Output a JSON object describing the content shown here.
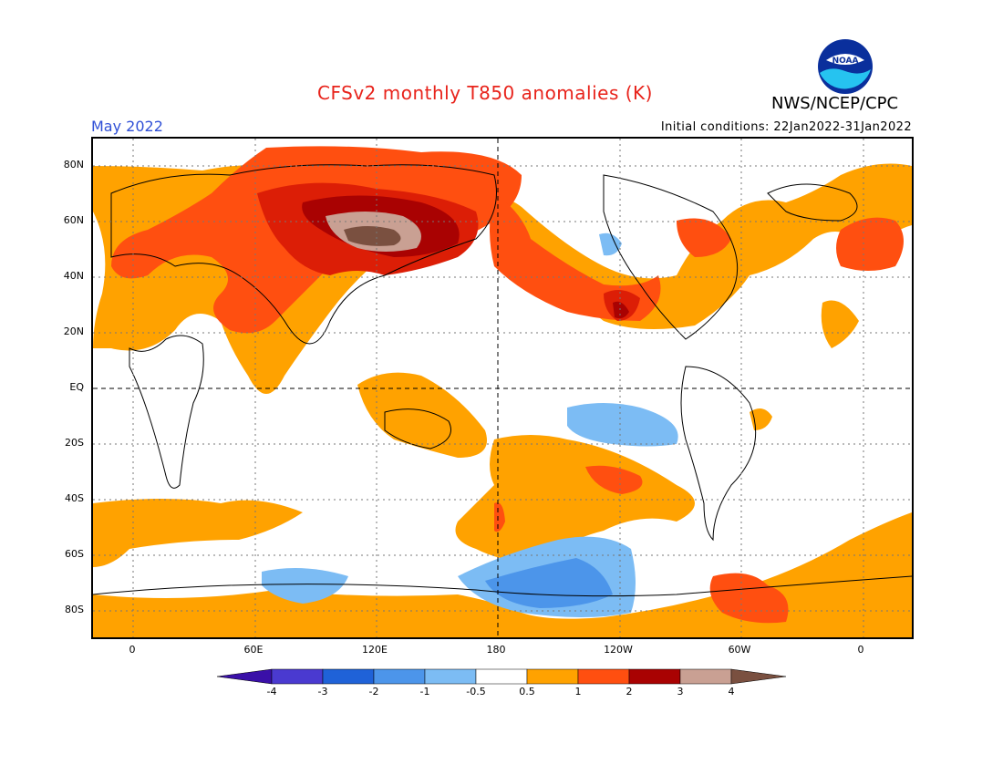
{
  "header": {
    "title": "CFSv2 monthly T850 anomalies (K)",
    "agency": "NWS/NCEP/CPC",
    "logo_text": "NOAA",
    "month": "May 2022",
    "initial_conditions": "Initial conditions: 22Jan2022-31Jan2022"
  },
  "colors": {
    "title": "#e8231b",
    "month": "#2f4fd6",
    "neg4": "#3a10a8",
    "neg3": "#4a3ad0",
    "neg2": "#1f62d8",
    "neg1": "#4c95ea",
    "neg05": "#7cbcf4",
    "neutral": "#ffffff",
    "pos05": "#ffa200",
    "pos1": "#ff4f10",
    "pos2": "#dc1e06",
    "pos3": "#a90202",
    "pos4": "#c9a093",
    "pos5": "#7a5040"
  },
  "axes": {
    "lat_labels": [
      "80N",
      "60N",
      "40N",
      "20N",
      "EQ",
      "20S",
      "40S",
      "60S",
      "80S"
    ],
    "lon_labels": [
      "0",
      "60E",
      "120E",
      "180",
      "120W",
      "60W",
      "0"
    ]
  },
  "colorbar": {
    "labels": [
      "-4",
      "-3",
      "-2",
      "-1",
      "-0.5",
      "0.5",
      "1",
      "2",
      "3",
      "4"
    ]
  }
}
